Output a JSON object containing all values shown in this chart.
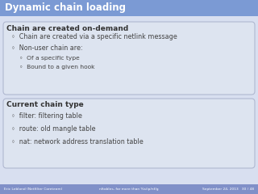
{
  "title": "Dynamic chain loading",
  "title_bg": "#7b9ad4",
  "title_color": "#ffffff",
  "slide_bg": "#d8dff0",
  "box_bg": "#dde4f0",
  "box_border": "#b0b8d0",
  "footer_bg": "#8090c8",
  "footer_color": "#ffffff",
  "footer_left": "Eric Leblond (Netfilter Coreteam)",
  "footer_mid": "nftables, far more than %s/ip/nf/g",
  "footer_right": "September 24, 2013   30 / 48",
  "box1_header": "Chain are created on-demand",
  "box1_items": [
    {
      "text": "Chain are created via a specific netlink message",
      "indent": 1
    },
    {
      "text": "Non-user chain are:",
      "indent": 1
    },
    {
      "text": "Of a specific type",
      "indent": 2
    },
    {
      "text": "Bound to a given hook",
      "indent": 2
    }
  ],
  "box2_header": "Current chain type",
  "box2_items": [
    {
      "text": "filter: filtering table",
      "indent": 1
    },
    {
      "text": "route: old mangle table",
      "indent": 1
    },
    {
      "text": "nat: network address translation table",
      "indent": 1
    }
  ],
  "header_text_color": "#333333",
  "item_text_color": "#444444",
  "bullet_open": "◦"
}
